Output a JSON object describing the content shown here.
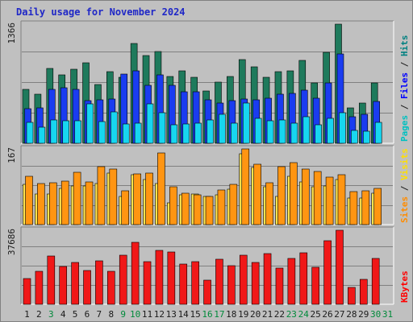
{
  "title": "Daily usage for November 2024",
  "colors": {
    "hits": "#1e7a5c",
    "files": "#1a3cf0",
    "pages": "#17d6f0",
    "visits": "#ffe44d",
    "sites": "#ff9512",
    "kbytes": "#f01818",
    "weekend_day": "#008a3a",
    "weekday": "#1a1a1a",
    "hits_label": "#008080",
    "files_label": "#0000ff",
    "pages_label": "#00c0c0",
    "visits_label": "#ffdf00",
    "sites_label": "#ff8c00",
    "kbytes_label": "#ff0000",
    "separator": "#5a5a5a"
  },
  "chart_data": [
    {
      "type": "bar",
      "panel": "hits-files-pages",
      "ymax_label": "1366",
      "ylim": [
        0,
        1366
      ],
      "legend": {
        "hits": "Hits",
        "files": "Files",
        "pages": "Pages",
        "separator": " / "
      },
      "categories": [
        "1",
        "2",
        "3",
        "4",
        "5",
        "6",
        "7",
        "8",
        "9",
        "10",
        "11",
        "12",
        "13",
        "14",
        "15",
        "16",
        "17",
        "18",
        "19",
        "20",
        "21",
        "22",
        "23",
        "24",
        "25",
        "26",
        "27",
        "28",
        "29",
        "30",
        "31"
      ],
      "series": [
        {
          "name": "Hits",
          "values": [
            620,
            560,
            860,
            780,
            850,
            920,
            670,
            820,
            760,
            1140,
            1010,
            1050,
            770,
            830,
            760,
            600,
            700,
            770,
            960,
            880,
            760,
            820,
            830,
            950,
            690,
            1040,
            1366,
            410,
            460,
            690,
            null
          ]
        },
        {
          "name": "Files",
          "values": [
            400,
            410,
            620,
            640,
            620,
            490,
            500,
            510,
            790,
            830,
            660,
            780,
            660,
            590,
            590,
            500,
            460,
            490,
            510,
            500,
            520,
            560,
            570,
            610,
            520,
            690,
            1020,
            300,
            330,
            480,
            null
          ]
        },
        {
          "name": "Pages",
          "values": [
            240,
            180,
            270,
            260,
            260,
            450,
            250,
            360,
            220,
            230,
            450,
            350,
            210,
            220,
            230,
            270,
            330,
            230,
            460,
            290,
            260,
            270,
            230,
            300,
            210,
            290,
            350,
            150,
            140,
            240,
            null
          ]
        }
      ]
    },
    {
      "type": "bar",
      "panel": "visits-sites",
      "ymax_label": "167",
      "ylim": [
        0,
        167
      ],
      "legend": {
        "visits": "Visits",
        "sites": "Sites",
        "separator": " / "
      },
      "categories": [
        "1",
        "2",
        "3",
        "4",
        "5",
        "6",
        "7",
        "8",
        "9",
        "10",
        "11",
        "12",
        "13",
        "14",
        "15",
        "16",
        "17",
        "18",
        "19",
        "20",
        "21",
        "22",
        "23",
        "24",
        "25",
        "26",
        "27",
        "28",
        "29",
        "30",
        "31"
      ],
      "series": [
        {
          "name": "Visits",
          "values": [
            88,
            68,
            68,
            80,
            86,
            86,
            90,
            114,
            62,
            110,
            100,
            90,
            48,
            66,
            68,
            62,
            66,
            78,
            157,
            126,
            84,
            62,
            106,
            94,
            84,
            86,
            100,
            58,
            58,
            70,
            null
          ]
        },
        {
          "name": "Sites",
          "values": [
            106,
            90,
            92,
            96,
            116,
            94,
            128,
            122,
            74,
            112,
            114,
            158,
            84,
            70,
            66,
            62,
            76,
            88,
            167,
            134,
            92,
            128,
            136,
            122,
            118,
            104,
            110,
            72,
            74,
            80,
            null
          ]
        }
      ]
    },
    {
      "type": "bar",
      "panel": "kbytes",
      "ymax_label": "37686",
      "ylim": [
        0,
        37686
      ],
      "legend": {
        "kbytes": "KBytes"
      },
      "categories": [
        "1",
        "2",
        "3",
        "4",
        "5",
        "6",
        "7",
        "8",
        "9",
        "10",
        "11",
        "12",
        "13",
        "14",
        "15",
        "16",
        "17",
        "18",
        "19",
        "20",
        "21",
        "22",
        "23",
        "24",
        "25",
        "26",
        "27",
        "28",
        "29",
        "30",
        "31"
      ],
      "series": [
        {
          "name": "KBytes",
          "values": [
            13300,
            16800,
            24700,
            19400,
            21400,
            17200,
            22000,
            16800,
            24900,
            31500,
            21900,
            27400,
            26800,
            20600,
            21800,
            12400,
            23100,
            19800,
            25000,
            21200,
            25900,
            18300,
            23500,
            26300,
            18700,
            32400,
            37686,
            8700,
            12500,
            23500,
            null
          ]
        }
      ]
    }
  ],
  "weekend_days": [
    "3",
    "9",
    "10",
    "16",
    "17",
    "23",
    "24",
    "30",
    "31"
  ]
}
